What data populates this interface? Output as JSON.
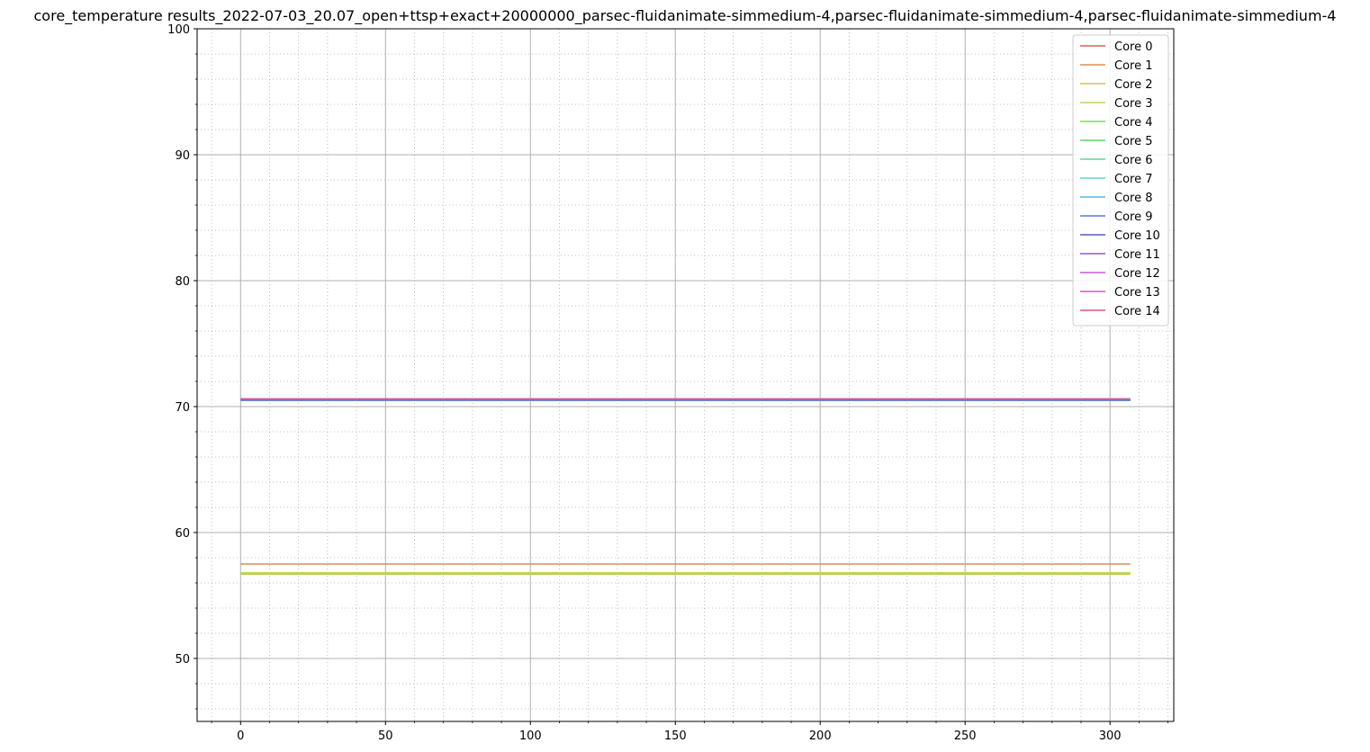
{
  "chart_data": {
    "type": "line",
    "title": "core_temperature results_2022-07-03_20.07_open+ttsp+exact+20000000_parsec-fluidanimate-simmedium-4,parsec-fluidanimate-simmedium-4,parsec-fluidanimate-simmedium-4",
    "xlabel": "",
    "ylabel": "",
    "xlim": [
      -15,
      322
    ],
    "ylim": [
      45,
      100
    ],
    "xticks": [
      0,
      50,
      100,
      150,
      200,
      250,
      300
    ],
    "yticks": [
      50,
      60,
      70,
      80,
      90,
      100
    ],
    "x_minor_step": 10,
    "y_minor_step": 2,
    "grid": true,
    "legend_position": "top-right",
    "series": [
      {
        "name": "Core 0",
        "color": "#db5f57",
        "x": [
          0,
          307
        ],
        "y": [
          56.8,
          56.8
        ]
      },
      {
        "name": "Core 1",
        "color": "#db8d57",
        "x": [
          0,
          307
        ],
        "y": [
          57.5,
          57.5
        ]
      },
      {
        "name": "Core 2",
        "color": "#c8c848",
        "x": [
          0,
          307
        ],
        "y": [
          56.7,
          56.7
        ]
      },
      {
        "name": "Core 3",
        "color": "#b9d957",
        "x": [
          0,
          307
        ],
        "y": [
          56.8,
          56.8
        ]
      },
      {
        "name": "Core 4",
        "color": "#7ddc57",
        "x": [
          0,
          307
        ],
        "y": [
          70.5,
          70.5
        ]
      },
      {
        "name": "Core 5",
        "color": "#57db5f",
        "x": [
          0,
          307
        ],
        "y": [
          70.5,
          70.5
        ]
      },
      {
        "name": "Core 6",
        "color": "#57db8d",
        "x": [
          0,
          307
        ],
        "y": [
          70.5,
          70.5
        ]
      },
      {
        "name": "Core 7",
        "color": "#57dbc8",
        "x": [
          0,
          307
        ],
        "y": [
          70.5,
          70.5
        ]
      },
      {
        "name": "Core 8",
        "color": "#57b9d9",
        "x": [
          0,
          307
        ],
        "y": [
          70.5,
          70.5
        ]
      },
      {
        "name": "Core 9",
        "color": "#577fdb",
        "x": [
          0,
          307
        ],
        "y": [
          70.5,
          70.5
        ]
      },
      {
        "name": "Core 10",
        "color": "#5b57c8",
        "x": [
          0,
          307
        ],
        "y": [
          70.6,
          70.6
        ]
      },
      {
        "name": "Core 11",
        "color": "#8d57db",
        "x": [
          0,
          307
        ],
        "y": [
          70.6,
          70.6
        ]
      },
      {
        "name": "Core 12",
        "color": "#c857db",
        "x": [
          0,
          307
        ],
        "y": [
          70.6,
          70.6
        ]
      },
      {
        "name": "Core 13",
        "color": "#db57b9",
        "x": [
          0,
          307
        ],
        "y": [
          70.6,
          70.6
        ]
      },
      {
        "name": "Core 14",
        "color": "#db5784",
        "x": [
          0,
          307
        ],
        "y": [
          70.6,
          70.6
        ]
      }
    ]
  }
}
